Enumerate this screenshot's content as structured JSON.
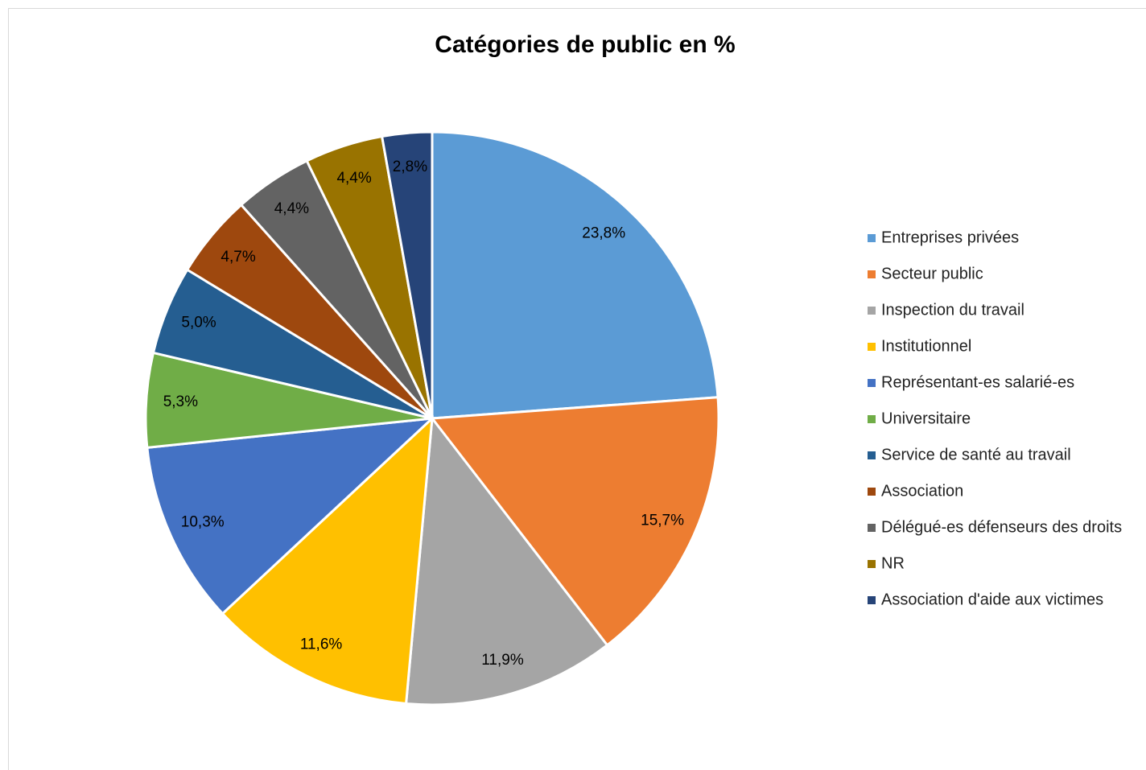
{
  "chart_data": {
    "type": "pie",
    "title": "Catégories de public en %",
    "categories": [
      "Entreprises privées",
      "Secteur public",
      "Inspection du travail",
      "Institutionnel",
      "Représentant-es salarié-es",
      "Universitaire",
      "Service de santé au travail",
      "Association",
      "Délégué-es défenseurs des droits",
      "NR",
      "Association d'aide aux victimes"
    ],
    "values": [
      23.8,
      15.7,
      11.9,
      11.6,
      10.3,
      5.3,
      5.0,
      4.7,
      4.4,
      4.4,
      2.8
    ],
    "value_labels": [
      "23,8%",
      "15,7%",
      "11,9%",
      "11,6%",
      "10,3%",
      "5,3%",
      "5,0%",
      "4,7%",
      "4,4%",
      "4,4%",
      "2,8%"
    ],
    "colors": [
      "#5b9bd5",
      "#ed7d31",
      "#a5a5a5",
      "#ffc000",
      "#4472c4",
      "#70ad47",
      "#255e91",
      "#9e480e",
      "#636363",
      "#997300",
      "#264478"
    ],
    "legend": "right"
  }
}
